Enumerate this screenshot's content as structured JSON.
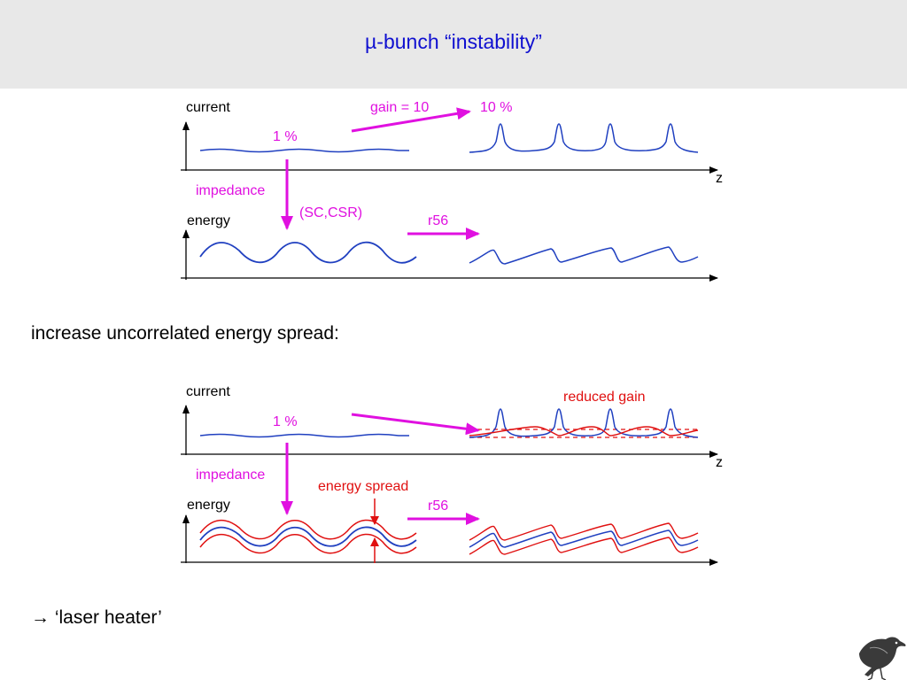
{
  "title": "µ-bunch “instability”",
  "top_panel": {
    "current_label": "current",
    "energy_label": "energy",
    "gain_label": "gain = 10",
    "pct_after": "10 %",
    "pct_before": "1 %",
    "z_label": "z",
    "impedance_label": "impedance",
    "sc_csr_label": "(SC,CSR)",
    "r56_label": "r56"
  },
  "body_text": "increase uncorrelated energy spread:",
  "bottom_panel": {
    "current_label": "current",
    "energy_label": "energy",
    "reduced_gain_label": "reduced gain",
    "pct_before": "1 %",
    "z_label": "z",
    "impedance_label": "impedance",
    "energy_spread_label": "energy spread",
    "r56_label": "r56"
  },
  "conclusion": "→ ‘laser heater’",
  "colors": {
    "title": "#1010d0",
    "curve_blue": "#2040c0",
    "annotation_magenta": "#e010e0",
    "annotation_red": "#e01010",
    "title_band": "#e8e8e8"
  },
  "logo": "crow-logo"
}
